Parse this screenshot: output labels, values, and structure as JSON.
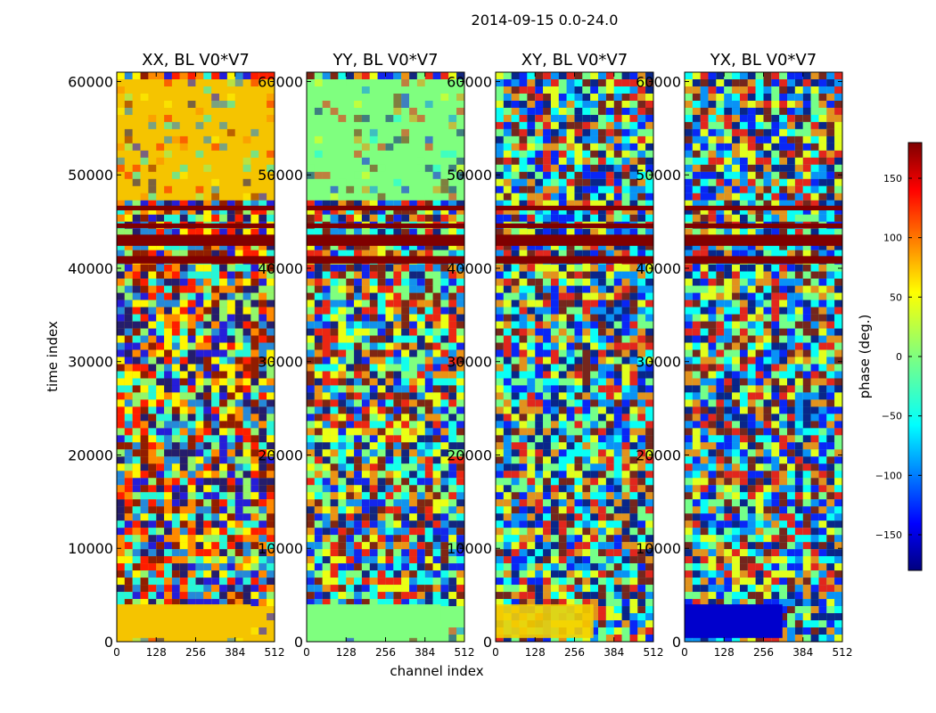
{
  "chart_data": {
    "type": "heatmap",
    "title": "2014-09-15 0.0-24.0",
    "xlabel": "channel index",
    "ylabel": "time index",
    "panels": [
      {
        "title": "XX, BL V0*V7"
      },
      {
        "title": "YY, BL V0*V7"
      },
      {
        "title": "XY, BL V0*V7"
      },
      {
        "title": "YX, BL V0*V7"
      }
    ],
    "xlim": [
      0,
      512
    ],
    "ylim": [
      0,
      61000
    ],
    "xticks": [
      0,
      128,
      256,
      384,
      512
    ],
    "yticks": [
      0,
      10000,
      20000,
      30000,
      40000,
      50000,
      60000
    ],
    "colorbar": {
      "label": "phase (deg.)",
      "range": [
        -180,
        180
      ],
      "ticks": [
        -150,
        -100,
        -50,
        0,
        50,
        100,
        150
      ],
      "colormap": "jet"
    },
    "colors": {
      "band_dark_red": "#7f0000",
      "jet": [
        "#00007f",
        "#0000ff",
        "#007fff",
        "#00ffff",
        "#7fff7f",
        "#ffff00",
        "#ff7f00",
        "#ff0000",
        "#7f0000"
      ]
    }
  }
}
